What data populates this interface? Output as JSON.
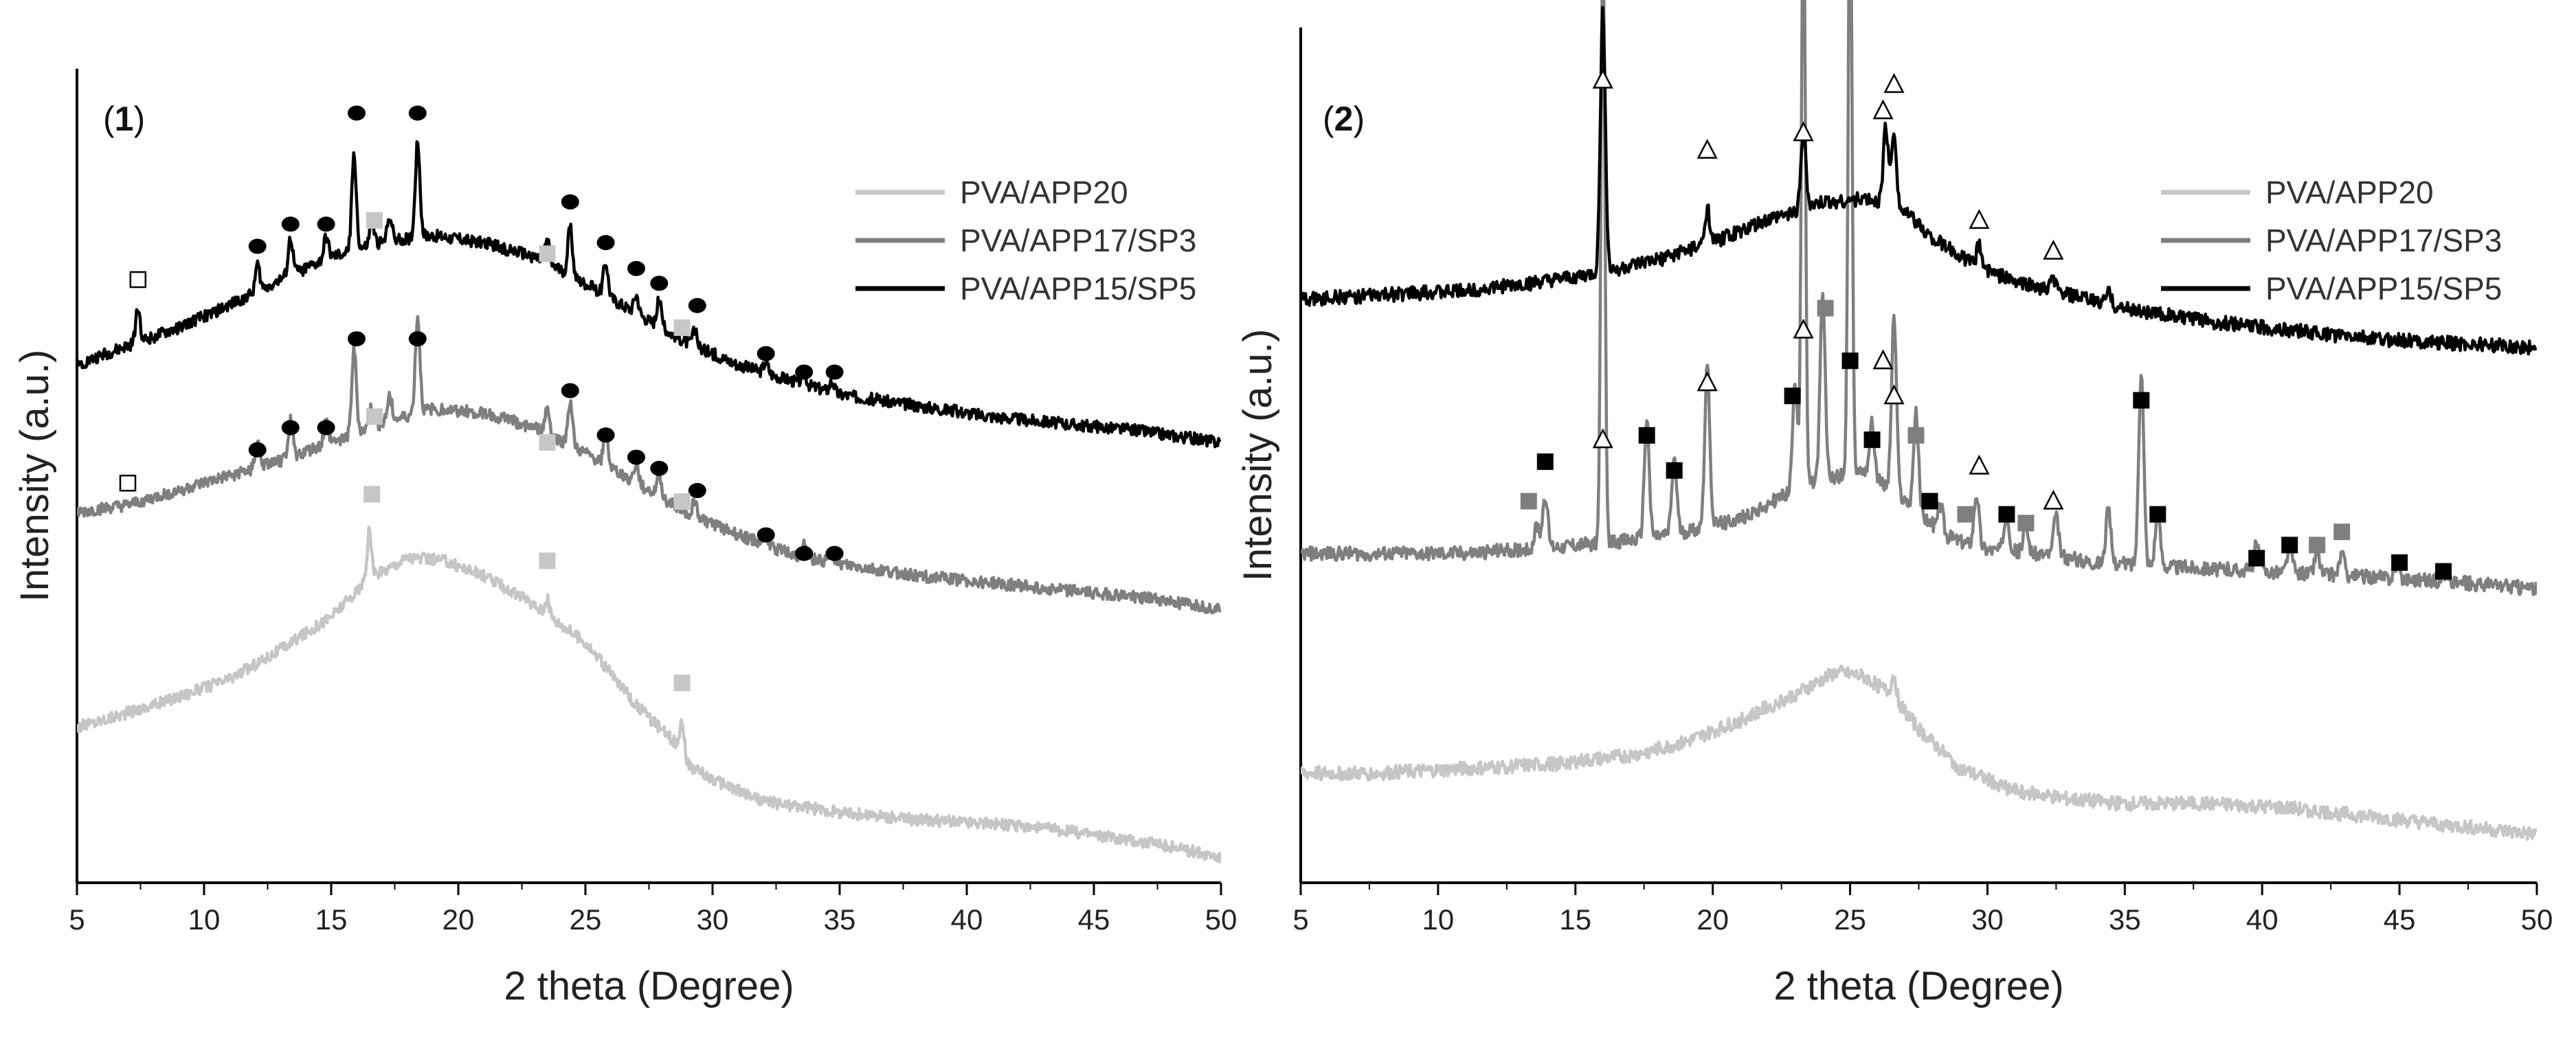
{
  "chart_data": [
    {
      "type": "line",
      "panel_label": "1",
      "xlabel": "2 theta (Degree)",
      "ylabel": "Intensity (a.u.)",
      "xlim": [
        5,
        50
      ],
      "xticks": [
        5,
        10,
        15,
        20,
        25,
        30,
        35,
        40,
        45,
        50
      ],
      "grid": false,
      "legend_position": "top-right",
      "series": [
        {
          "name": "PVA/APP20",
          "color": "#c6c6c6",
          "x": [
            5,
            8,
            11,
            13,
            15,
            16.5,
            18,
            19.5,
            21,
            23,
            25,
            27,
            28.8,
            29,
            30,
            32,
            35,
            38,
            41,
            44,
            47,
            50
          ],
          "y": [
            -5.8,
            -5.2,
            -4.5,
            -3.7,
            -2.8,
            -1.8,
            -1.2,
            -1.3,
            -1.7,
            -2.5,
            -3.5,
            -5.2,
            -6.4,
            -6.8,
            -7.2,
            -7.8,
            -8.1,
            -8.3,
            -8.4,
            -8.6,
            -8.9,
            -9.3
          ],
          "peaks": [
            [
              16.5,
              1.3
            ],
            [
              23.5,
              0.4
            ],
            [
              28.8,
              0.8
            ]
          ]
        },
        {
          "name": "PVA/APP17/SP3",
          "color": "#7f7f7f",
          "x": [
            5,
            7,
            9,
            11,
            13,
            15,
            17,
            19,
            21,
            23,
            25,
            27,
            29,
            31,
            33,
            35,
            38,
            41,
            44,
            47,
            50
          ],
          "y": [
            0,
            0.2,
            0.6,
            1.0,
            1.4,
            1.9,
            2.4,
            2.8,
            2.7,
            2.3,
            1.6,
            0.8,
            0.0,
            -0.6,
            -1.1,
            -1.4,
            -1.7,
            -1.9,
            -2.1,
            -2.3,
            -2.6
          ],
          "peaks": [
            [
              12.1,
              0.7
            ],
            [
              13.4,
              1.0
            ],
            [
              14.8,
              0.6
            ],
            [
              15.9,
              2.3
            ],
            [
              16.6,
              0.6
            ],
            [
              17.3,
              0.7
            ],
            [
              18.4,
              2.6
            ],
            [
              23.5,
              0.7
            ],
            [
              24.4,
              1.2
            ],
            [
              25.8,
              0.9
            ],
            [
              27,
              0.5
            ],
            [
              27.9,
              0.6
            ],
            [
              29.3,
              0.4
            ],
            [
              32.1,
              0.3
            ],
            [
              33.6,
              0.3
            ],
            [
              34.7,
              0.3
            ]
          ]
        },
        {
          "name": "PVA/APP15/SP5",
          "color": "#000000",
          "x": [
            5,
            7,
            9,
            11,
            13,
            15,
            17,
            19,
            21,
            23,
            25,
            27,
            29,
            31,
            33,
            35,
            38,
            41,
            44,
            47,
            50
          ],
          "y": [
            4.0,
            4.5,
            5.0,
            5.6,
            6.3,
            6.9,
            7.3,
            7.5,
            7.3,
            6.9,
            6.2,
            5.4,
            4.6,
            4.0,
            3.6,
            3.2,
            2.9,
            2.6,
            2.4,
            2.2,
            1.9
          ],
          "peaks": [
            [
              7.4,
              0.9
            ],
            [
              12.1,
              0.7
            ],
            [
              13.4,
              1.0
            ],
            [
              14.8,
              0.6
            ],
            [
              15.9,
              2.6
            ],
            [
              16.6,
              0.6
            ],
            [
              17.3,
              0.7
            ],
            [
              18.4,
              2.6
            ],
            [
              23.5,
              0.6
            ],
            [
              24.4,
              1.3
            ],
            [
              25.8,
              0.9
            ],
            [
              27,
              0.5
            ],
            [
              27.9,
              0.7
            ],
            [
              29.3,
              0.4
            ],
            [
              32.1,
              0.3
            ],
            [
              33.6,
              0.3
            ],
            [
              34.7,
              0.3
            ]
          ]
        }
      ],
      "markers": [
        {
          "shape": "circle-black",
          "points": [
            [
              12.1,
              7.2
            ],
            [
              13.4,
              7.8
            ],
            [
              14.8,
              7.8
            ],
            [
              16,
              10.8
            ],
            [
              18.4,
              10.8
            ],
            [
              24.4,
              8.4
            ],
            [
              25.8,
              7.3
            ],
            [
              27,
              6.6
            ],
            [
              27.9,
              6.2
            ],
            [
              29.4,
              5.6
            ],
            [
              32.1,
              4.3
            ],
            [
              33.6,
              3.8
            ],
            [
              34.8,
              3.8
            ],
            [
              16,
              4.7
            ],
            [
              18.4,
              4.7
            ],
            [
              24.4,
              3.3
            ],
            [
              25.8,
              2.1
            ],
            [
              27,
              1.5
            ],
            [
              27.9,
              1.2
            ],
            [
              29.4,
              0.6
            ],
            [
              12.1,
              1.7
            ],
            [
              13.4,
              2.3
            ],
            [
              14.8,
              2.3
            ],
            [
              32.1,
              -0.6
            ],
            [
              33.6,
              -1.1
            ],
            [
              34.8,
              -1.1
            ]
          ]
        },
        {
          "shape": "square-light",
          "points": [
            [
              16.7,
              7.9
            ],
            [
              23.5,
              7.0
            ],
            [
              28.8,
              5.0
            ],
            [
              16.7,
              2.6
            ],
            [
              23.5,
              1.9
            ],
            [
              28.8,
              0.3
            ],
            [
              16.6,
              0.5
            ],
            [
              23.5,
              -1.3
            ],
            [
              28.8,
              -4.6
            ]
          ]
        },
        {
          "shape": "square-open",
          "points": [
            [
              7.4,
              6.3
            ],
            [
              7.0,
              0.8
            ]
          ]
        }
      ]
    },
    {
      "type": "line",
      "panel_label": "2",
      "xlabel": "2 theta (Degree)",
      "ylabel": "Intensity (a.u.)",
      "xlim": [
        5,
        50
      ],
      "xticks": [
        5,
        10,
        15,
        20,
        25,
        30,
        35,
        40,
        45,
        50
      ],
      "grid": false,
      "legend_position": "top-right",
      "series": [
        {
          "name": "PVA/APP20",
          "color": "#c6c6c6",
          "x": [
            5,
            8,
            11,
            14,
            17,
            19,
            21,
            23,
            24.5,
            25.5,
            26.5,
            27.5,
            29,
            31,
            33,
            35,
            38,
            41,
            44,
            47,
            50
          ],
          "y": [
            -5.0,
            -5.0,
            -4.9,
            -4.8,
            -4.6,
            -4.3,
            -3.8,
            -3.2,
            -2.7,
            -2.8,
            -3.2,
            -4.0,
            -4.9,
            -5.4,
            -5.6,
            -5.7,
            -5.7,
            -5.8,
            -6.0,
            -6.2,
            -6.4
          ],
          "peaks": [
            [
              26.6,
              0.5
            ]
          ]
        },
        {
          "name": "PVA/APP17/SP3",
          "color": "#7f7f7f",
          "x": [
            5,
            8,
            11,
            13,
            15,
            17,
            19,
            21,
            22.5,
            24,
            25.5,
            27,
            28.5,
            30,
            32,
            34,
            37,
            40,
            43,
            46,
            50
          ],
          "y": [
            0,
            0,
            0,
            0.1,
            0.2,
            0.3,
            0.5,
            0.8,
            1.3,
            1.7,
            1.9,
            1.2,
            0.4,
            0.1,
            0,
            -0.2,
            -0.3,
            -0.4,
            -0.5,
            -0.6,
            -0.8
          ],
          "peaks": [
            [
              13.6,
              0.5
            ],
            [
              13.9,
              1.2
            ],
            [
              16,
              14
            ],
            [
              17.6,
              2.7
            ],
            [
              18.6,
              1.7
            ],
            [
              19.8,
              3.7
            ],
            [
              23,
              2.5
            ],
            [
              23.3,
              14
            ],
            [
              24,
              4.2
            ],
            [
              25,
              14
            ],
            [
              25.8,
              1.2
            ],
            [
              26.6,
              4
            ],
            [
              27.4,
              2.2
            ],
            [
              28.3,
              0.6
            ],
            [
              29.6,
              1.2
            ],
            [
              30.7,
              0.9
            ],
            [
              31.4,
              0.6
            ],
            [
              32.5,
              0.9
            ],
            [
              34.4,
              1.2
            ],
            [
              35.6,
              4.5
            ],
            [
              36.2,
              1.2
            ],
            [
              39.8,
              0.6
            ],
            [
              41,
              0.6
            ],
            [
              42,
              0.5
            ],
            [
              42.9,
              0.5
            ],
            [
              44.9,
              0.3
            ],
            [
              46.6,
              0.2
            ]
          ]
        },
        {
          "name": "PVA/APP15/SP5",
          "color": "#000000",
          "x": [
            5,
            8,
            11,
            14,
            16,
            18,
            20,
            22,
            24,
            25.5,
            27,
            28,
            29.5,
            31,
            33,
            35,
            38,
            41,
            44,
            47,
            50
          ],
          "y": [
            5.8,
            5.9,
            6.0,
            6.2,
            6.4,
            6.7,
            7.1,
            7.6,
            8.0,
            8.1,
            7.8,
            7.2,
            6.6,
            6.2,
            5.9,
            5.6,
            5.3,
            5.1,
            4.9,
            4.8,
            4.7
          ],
          "peaks": [
            [
              16,
              6.0
            ],
            [
              19.8,
              0.8
            ],
            [
              23.3,
              1.8
            ],
            [
              26.3,
              1.8
            ],
            [
              26.6,
              1.8
            ],
            [
              29.7,
              0.5
            ],
            [
              32.4,
              0.3
            ],
            [
              34.4,
              0.3
            ]
          ]
        }
      ],
      "markers": [
        {
          "shape": "triangle-open",
          "points": [
            [
              16,
              10.8
            ],
            [
              19.8,
              9.2
            ],
            [
              23.3,
              9.6
            ],
            [
              26.2,
              10.1
            ],
            [
              26.6,
              10.7
            ],
            [
              29.7,
              7.6
            ],
            [
              32.4,
              6.9
            ],
            [
              23.3,
              5.1
            ],
            [
              26.2,
              4.4
            ],
            [
              26.6,
              3.6
            ],
            [
              19.8,
              3.9
            ],
            [
              16,
              2.6
            ],
            [
              29.7,
              2.0
            ],
            [
              32.4,
              1.2
            ]
          ]
        },
        {
          "shape": "square-black",
          "points": [
            [
              13.9,
              2.1
            ],
            [
              17.6,
              2.7
            ],
            [
              18.6,
              1.9
            ],
            [
              22.9,
              3.6
            ],
            [
              25,
              4.4
            ],
            [
              25.8,
              2.6
            ],
            [
              27.9,
              1.2
            ],
            [
              30.7,
              0.9
            ],
            [
              35.6,
              3.5
            ],
            [
              36.2,
              0.9
            ],
            [
              39.8,
              -0.1
            ],
            [
              41,
              0.2
            ],
            [
              45,
              -0.2
            ],
            [
              46.6,
              -0.4
            ]
          ]
        },
        {
          "shape": "square-gray",
          "points": [
            [
              13.3,
              1.2
            ],
            [
              24.1,
              5.6
            ],
            [
              27.4,
              2.7
            ],
            [
              29.2,
              0.9
            ],
            [
              31.4,
              0.7
            ],
            [
              42,
              0.2
            ],
            [
              42.9,
              0.5
            ]
          ]
        }
      ]
    }
  ]
}
